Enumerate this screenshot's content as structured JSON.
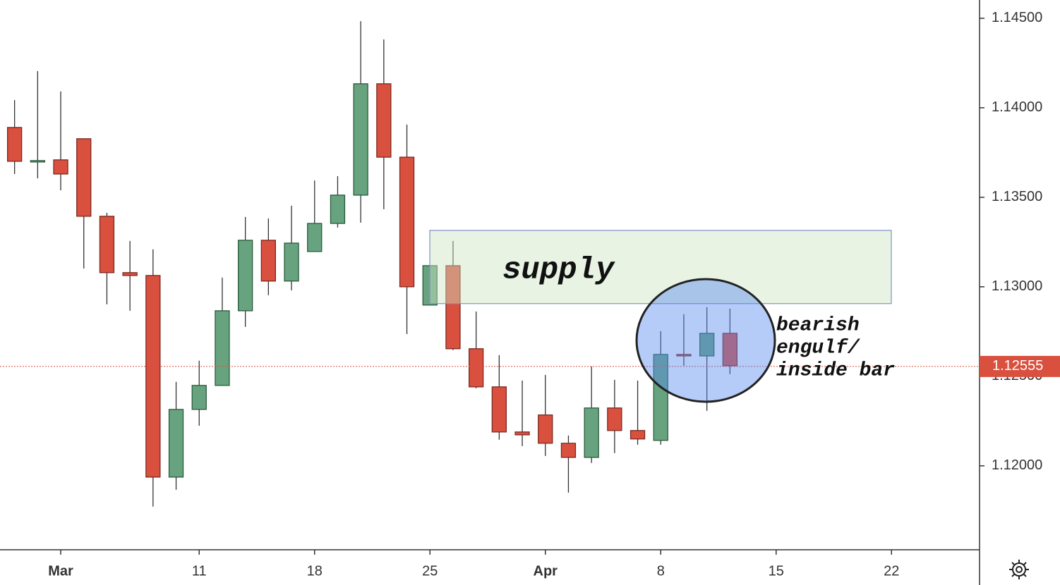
{
  "chart_data": {
    "type": "candlestick",
    "categories": [
      null,
      null,
      "Mar",
      null,
      null,
      null,
      null,
      null,
      "11",
      null,
      null,
      null,
      null,
      "18",
      null,
      null,
      null,
      null,
      "25",
      null,
      null,
      null,
      null,
      "Apr",
      null,
      null,
      null,
      null,
      "8",
      null,
      null,
      null,
      null,
      "15",
      null,
      null,
      null,
      null,
      "22",
      null,
      null,
      null
    ],
    "open": [
      1.1389,
      1.13705,
      1.13709,
      1.13827,
      1.13394,
      1.13079,
      1.13063,
      1.11937,
      1.12315,
      1.12449,
      1.12866,
      1.1326,
      1.13032,
      1.13197,
      1.13354,
      1.13512,
      1.14134,
      1.13724,
      1.12898,
      1.13118,
      1.12654,
      1.12441,
      1.12189,
      1.12284,
      1.12126,
      1.12047,
      1.12323,
      1.12197,
      1.12142,
      1.12622,
      1.12614,
      1.1274,
      null,
      null,
      null,
      null,
      null,
      null,
      null,
      null,
      null,
      null
    ],
    "high": [
      1.14043,
      1.14205,
      1.14091,
      1.13827,
      1.13413,
      1.13256,
      1.13209,
      1.12469,
      1.12587,
      1.13051,
      1.1339,
      1.13382,
      1.13453,
      1.13594,
      1.13618,
      1.14484,
      1.14382,
      1.13906,
      1.13118,
      1.13256,
      1.12862,
      1.12618,
      1.12476,
      1.12508,
      1.12169,
      1.12555,
      1.1248,
      1.12476,
      1.12752,
      1.12847,
      1.12886,
      1.12878,
      null,
      null,
      null,
      null,
      null,
      null,
      null,
      null,
      null,
      null
    ],
    "low": [
      1.1363,
      1.13606,
      1.13539,
      1.13102,
      1.12902,
      1.12866,
      1.11772,
      1.11866,
      1.12224,
      1.12449,
      1.12776,
      1.12953,
      1.1298,
      1.13197,
      1.13331,
      1.13358,
      1.13433,
      1.12736,
      1.12898,
      1.12646,
      1.12433,
      1.12146,
      1.1211,
      1.12055,
      1.1185,
      1.12016,
      1.12071,
      1.12118,
      1.12118,
      1.12559,
      1.12307,
      1.12512,
      null,
      null,
      null,
      null,
      null,
      null,
      null,
      null,
      null,
      null
    ],
    "close": [
      1.13701,
      1.13705,
      1.1363,
      1.13394,
      1.13079,
      1.13063,
      1.11937,
      1.12315,
      1.12449,
      1.12866,
      1.1326,
      1.13032,
      1.13244,
      1.13354,
      1.13512,
      1.14134,
      1.13724,
      1.13,
      1.13118,
      1.12654,
      1.12441,
      1.12189,
      1.12173,
      1.12126,
      1.12047,
      1.12323,
      1.12197,
      1.1215,
      1.12622,
      1.12614,
      1.1274,
      1.12559,
      null,
      null,
      null,
      null,
      null,
      null,
      null,
      null,
      null,
      null
    ],
    "up_color": "#67a37e",
    "down_color": "#d9503f",
    "ylim": [
      1.11531,
      1.14602
    ],
    "yticks": [
      {
        "value": 1.145,
        "label": "1.14500"
      },
      {
        "value": 1.14,
        "label": "1.14000"
      },
      {
        "value": 1.135,
        "label": "1.13500"
      },
      {
        "value": 1.13,
        "label": "1.13000"
      },
      {
        "value": 1.125,
        "label": "1.12500"
      },
      {
        "value": 1.12,
        "label": "1.12000"
      }
    ],
    "last_price": 1.12555,
    "supply_zone": {
      "label": "supply",
      "top": 1.13315,
      "bottom": 1.12906
    },
    "annotation": [
      "bearish",
      "engulf/",
      "inside bar"
    ]
  }
}
